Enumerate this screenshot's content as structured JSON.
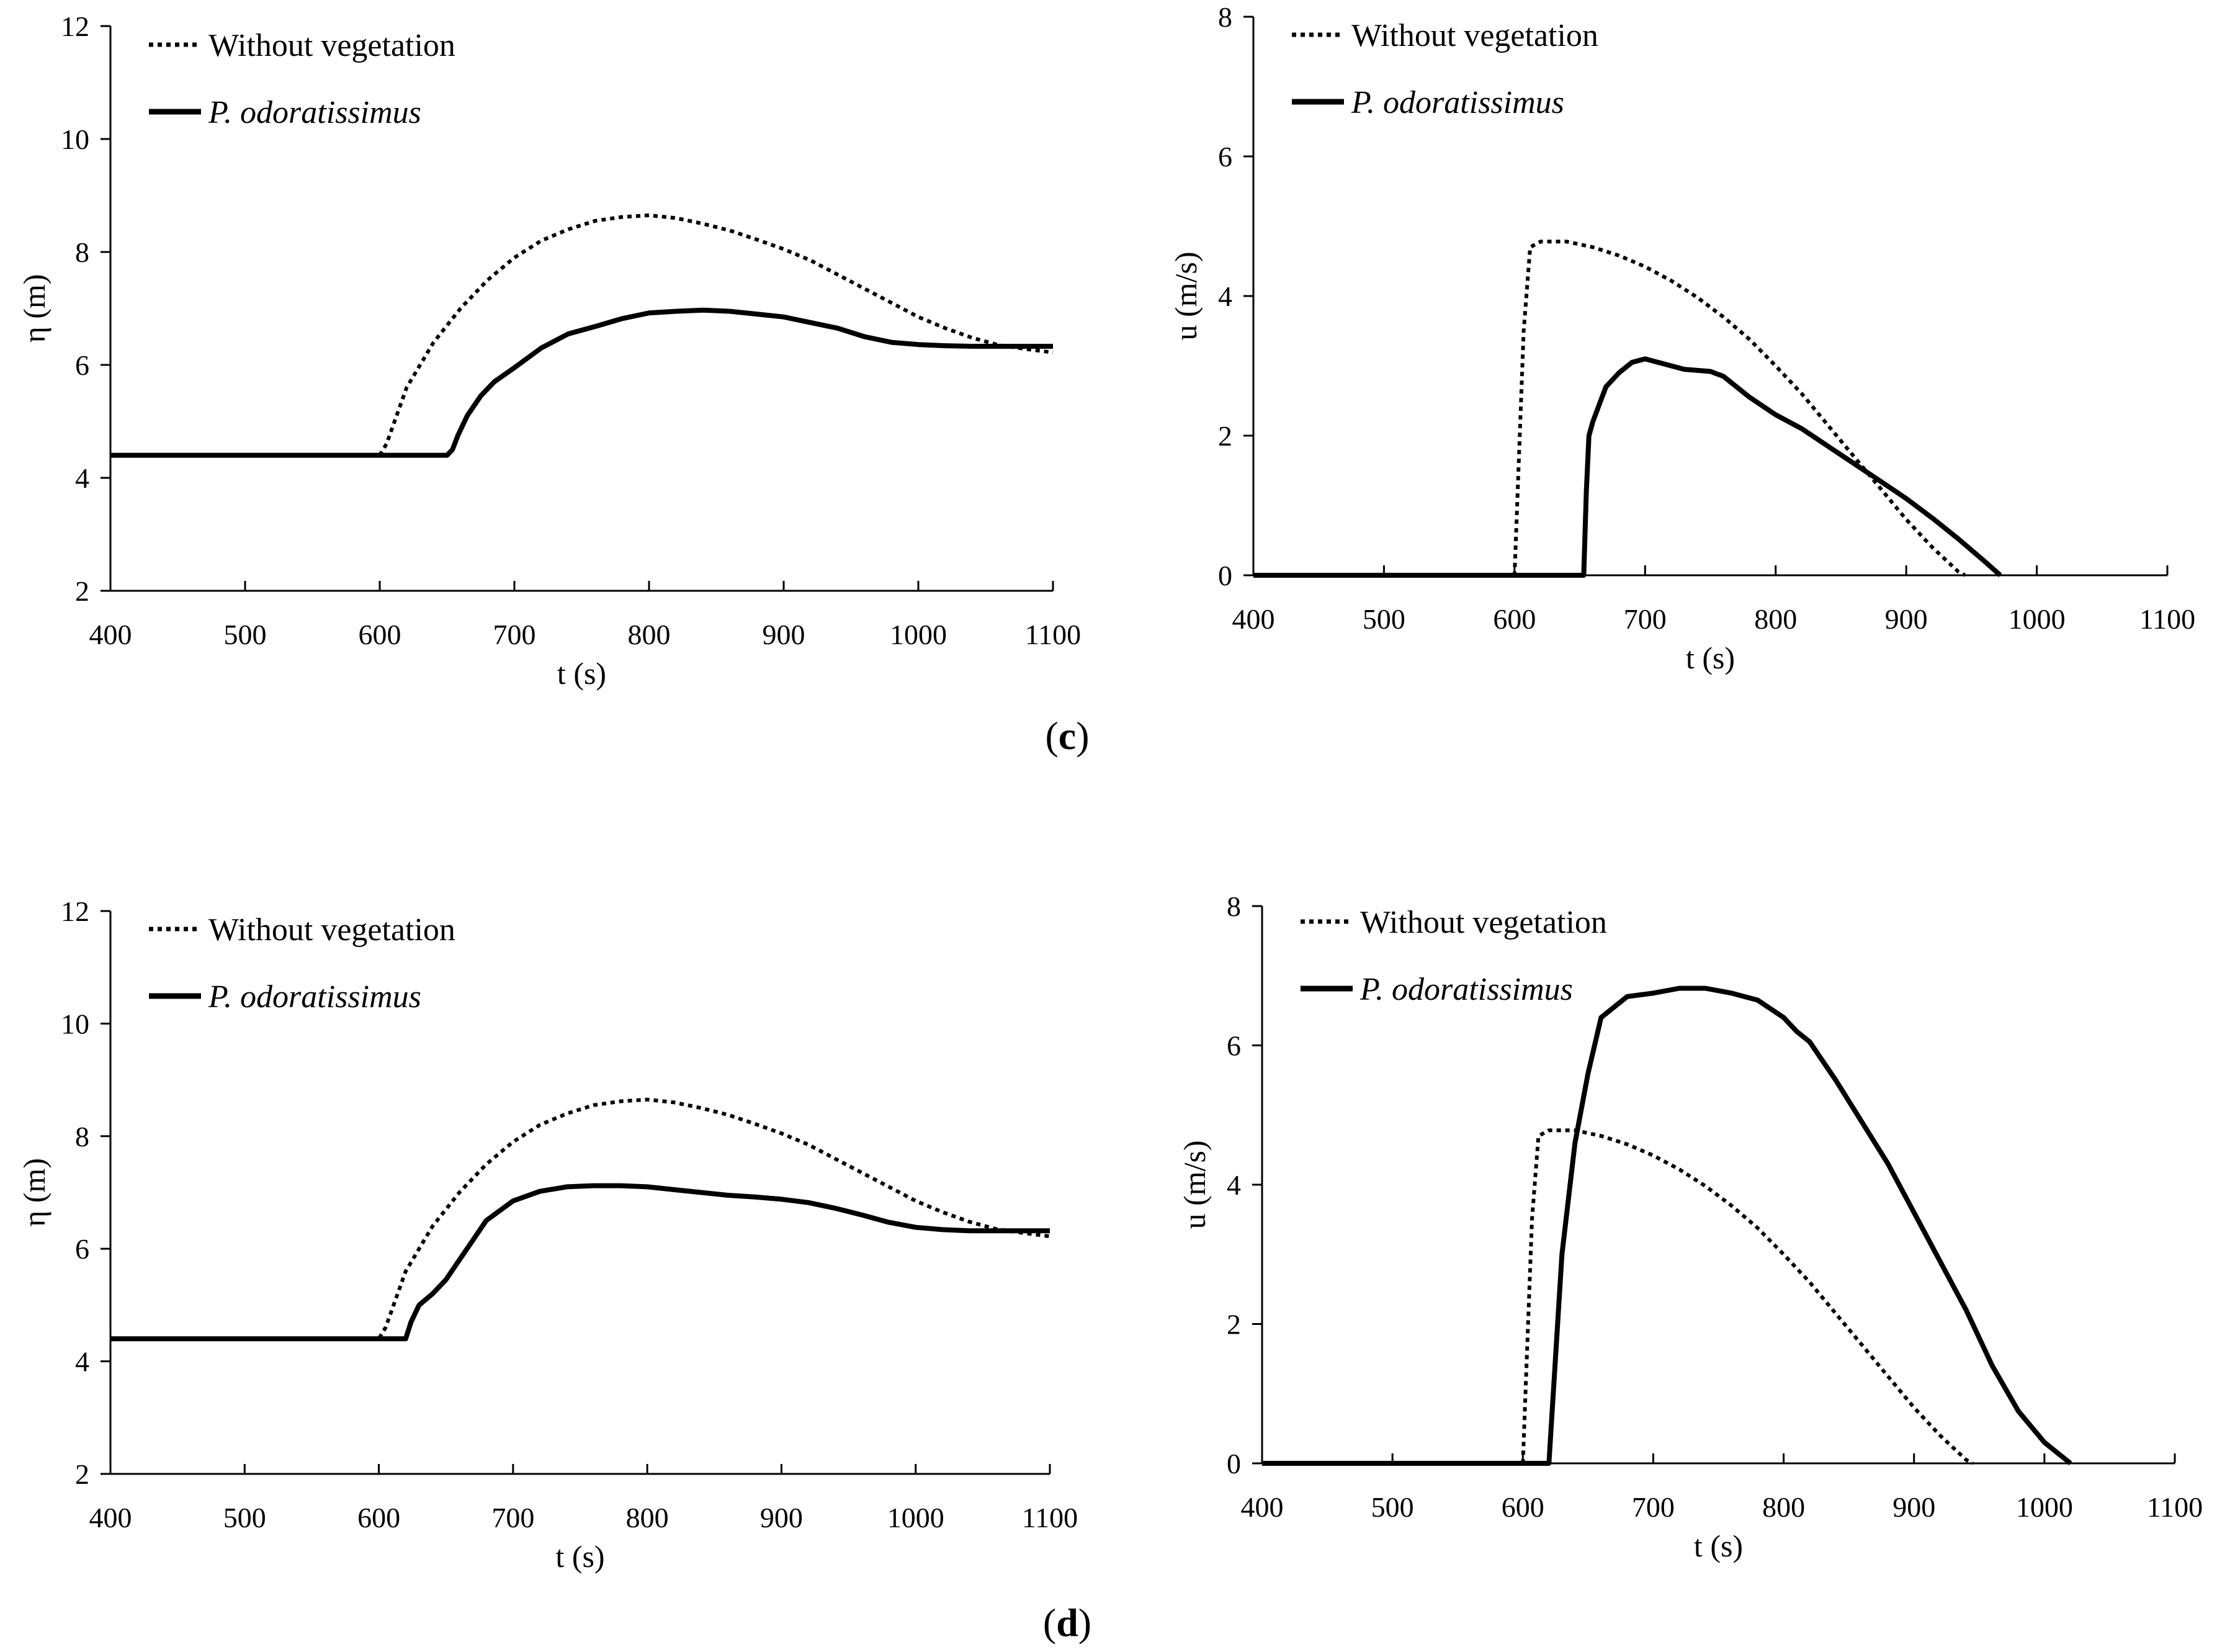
{
  "figure": {
    "panel_labels": [
      {
        "open": "(",
        "letter": "c",
        "close": ")"
      },
      {
        "open": "(",
        "letter": "d",
        "close": ")"
      }
    ]
  },
  "chart_data": [
    {
      "type": "line",
      "panel": "c",
      "xlabel": "t (s)",
      "ylabel": "η (m)",
      "xlim": [
        400,
        1100
      ],
      "ylim": [
        2,
        12
      ],
      "xticks": [
        400,
        500,
        600,
        700,
        800,
        900,
        1000,
        1100
      ],
      "yticks": [
        2,
        4,
        6,
        8,
        10,
        12
      ],
      "legend_position": "top-left",
      "series": [
        {
          "name": "Without vegetation",
          "style": "dotted",
          "x": [
            400,
            600,
            605,
            620,
            640,
            660,
            680,
            700,
            720,
            740,
            760,
            780,
            800,
            820,
            840,
            860,
            880,
            900,
            920,
            940,
            960,
            980,
            1000,
            1020,
            1040,
            1060,
            1080,
            1100
          ],
          "y": [
            4.4,
            4.4,
            4.6,
            5.6,
            6.4,
            7.0,
            7.5,
            7.9,
            8.2,
            8.4,
            8.55,
            8.62,
            8.65,
            8.6,
            8.5,
            8.38,
            8.22,
            8.05,
            7.85,
            7.6,
            7.35,
            7.1,
            6.85,
            6.65,
            6.48,
            6.35,
            6.28,
            6.22
          ]
        },
        {
          "name": "P. odoratissimus",
          "style": "solid",
          "x": [
            400,
            650,
            654,
            658,
            665,
            675,
            685,
            700,
            720,
            740,
            760,
            780,
            800,
            820,
            840,
            860,
            880,
            900,
            920,
            940,
            960,
            980,
            1000,
            1020,
            1040,
            1060,
            1080,
            1100
          ],
          "y": [
            4.4,
            4.4,
            4.5,
            4.75,
            5.1,
            5.45,
            5.7,
            5.95,
            6.3,
            6.55,
            6.68,
            6.82,
            6.92,
            6.95,
            6.97,
            6.95,
            6.9,
            6.85,
            6.75,
            6.65,
            6.5,
            6.4,
            6.36,
            6.34,
            6.33,
            6.33,
            6.33,
            6.33
          ]
        }
      ]
    },
    {
      "type": "line",
      "panel": "c",
      "xlabel": "t (s)",
      "ylabel": "u (m/s)",
      "xlim": [
        400,
        1100
      ],
      "ylim": [
        0,
        8
      ],
      "xticks": [
        400,
        500,
        600,
        700,
        800,
        900,
        1000,
        1100
      ],
      "yticks": [
        0,
        2,
        4,
        6,
        8
      ],
      "legend_position": "top-left",
      "series": [
        {
          "name": "Without vegetation",
          "style": "dotted",
          "x": [
            400,
            600,
            603,
            607,
            612,
            620,
            640,
            660,
            680,
            700,
            720,
            740,
            760,
            780,
            800,
            820,
            840,
            860,
            880,
            900,
            920,
            940,
            945
          ],
          "y": [
            0,
            0,
            1.5,
            3.5,
            4.7,
            4.78,
            4.78,
            4.7,
            4.58,
            4.42,
            4.22,
            3.98,
            3.7,
            3.38,
            3.0,
            2.6,
            2.15,
            1.7,
            1.25,
            0.8,
            0.4,
            0.05,
            0
          ]
        },
        {
          "name": "P. odoratissimus",
          "style": "solid",
          "x": [
            400,
            653,
            655,
            657,
            660,
            665,
            670,
            680,
            690,
            700,
            710,
            730,
            750,
            760,
            770,
            780,
            800,
            820,
            840,
            860,
            880,
            900,
            920,
            940,
            960,
            972
          ],
          "y": [
            0,
            0,
            1.2,
            2.0,
            2.2,
            2.45,
            2.7,
            2.9,
            3.05,
            3.1,
            3.05,
            2.95,
            2.92,
            2.85,
            2.7,
            2.55,
            2.3,
            2.1,
            1.85,
            1.6,
            1.35,
            1.1,
            0.82,
            0.52,
            0.2,
            0
          ]
        }
      ]
    },
    {
      "type": "line",
      "panel": "d",
      "xlabel": "t (s)",
      "ylabel": "η (m)",
      "xlim": [
        400,
        1100
      ],
      "ylim": [
        2,
        12
      ],
      "xticks": [
        400,
        500,
        600,
        700,
        800,
        900,
        1000,
        1100
      ],
      "yticks": [
        2,
        4,
        6,
        8,
        10,
        12
      ],
      "legend_position": "top-left",
      "series": [
        {
          "name": "Without vegetation",
          "style": "dotted",
          "x": [
            400,
            600,
            605,
            620,
            640,
            660,
            680,
            700,
            720,
            740,
            760,
            780,
            800,
            820,
            840,
            860,
            880,
            900,
            920,
            940,
            960,
            980,
            1000,
            1020,
            1040,
            1060,
            1080,
            1100
          ],
          "y": [
            4.4,
            4.4,
            4.6,
            5.6,
            6.4,
            7.0,
            7.5,
            7.9,
            8.2,
            8.4,
            8.55,
            8.62,
            8.65,
            8.6,
            8.5,
            8.38,
            8.22,
            8.05,
            7.85,
            7.6,
            7.35,
            7.1,
            6.85,
            6.65,
            6.48,
            6.35,
            6.28,
            6.22
          ]
        },
        {
          "name": "P. odoratissimus",
          "style": "solid",
          "x": [
            400,
            620,
            624,
            630,
            640,
            650,
            660,
            670,
            680,
            700,
            720,
            740,
            760,
            780,
            800,
            820,
            840,
            860,
            880,
            900,
            920,
            940,
            960,
            980,
            1000,
            1020,
            1040,
            1060,
            1080,
            1100
          ],
          "y": [
            4.4,
            4.4,
            4.7,
            5.0,
            5.2,
            5.45,
            5.8,
            6.15,
            6.5,
            6.85,
            7.02,
            7.1,
            7.12,
            7.12,
            7.1,
            7.05,
            7.0,
            6.95,
            6.92,
            6.88,
            6.82,
            6.72,
            6.6,
            6.47,
            6.38,
            6.34,
            6.32,
            6.32,
            6.32,
            6.32
          ]
        }
      ]
    },
    {
      "type": "line",
      "panel": "d",
      "xlabel": "t (s)",
      "ylabel": "u (m/s)",
      "xlim": [
        400,
        1100
      ],
      "ylim": [
        0,
        8
      ],
      "xticks": [
        400,
        500,
        600,
        700,
        800,
        900,
        1000,
        1100
      ],
      "yticks": [
        0,
        2,
        4,
        6,
        8
      ],
      "legend_position": "top-left",
      "series": [
        {
          "name": "Without vegetation",
          "style": "dotted",
          "x": [
            400,
            600,
            603,
            607,
            612,
            620,
            640,
            660,
            680,
            700,
            720,
            740,
            760,
            780,
            800,
            820,
            840,
            860,
            880,
            900,
            920,
            940,
            945
          ],
          "y": [
            0,
            0,
            1.5,
            3.5,
            4.7,
            4.78,
            4.78,
            4.7,
            4.58,
            4.42,
            4.22,
            3.98,
            3.7,
            3.38,
            3.0,
            2.6,
            2.15,
            1.7,
            1.25,
            0.8,
            0.4,
            0.05,
            0
          ]
        },
        {
          "name": "P. odoratissimus",
          "style": "solid",
          "x": [
            400,
            620,
            625,
            630,
            640,
            650,
            660,
            680,
            700,
            720,
            740,
            760,
            780,
            800,
            810,
            820,
            840,
            860,
            880,
            900,
            920,
            940,
            960,
            980,
            1000,
            1020
          ],
          "y": [
            0,
            0,
            1.5,
            3.0,
            4.6,
            5.6,
            6.4,
            6.7,
            6.75,
            6.82,
            6.82,
            6.75,
            6.65,
            6.4,
            6.2,
            6.05,
            5.5,
            4.9,
            4.3,
            3.6,
            2.9,
            2.2,
            1.4,
            0.75,
            0.3,
            0
          ]
        }
      ]
    }
  ]
}
